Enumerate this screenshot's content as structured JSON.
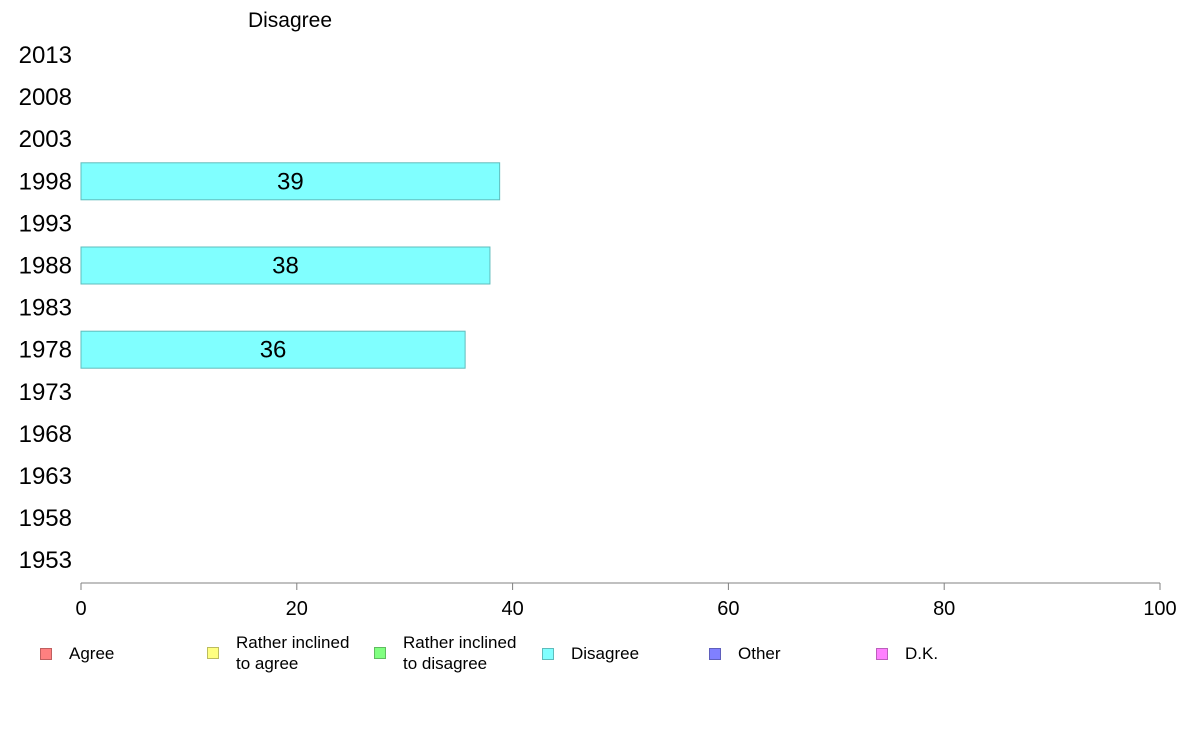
{
  "chart_data": {
    "type": "bar",
    "orientation": "horizontal",
    "title": "Disagree",
    "categories": [
      "2013",
      "2008",
      "2003",
      "1998",
      "1993",
      "1988",
      "1983",
      "1978",
      "1973",
      "1968",
      "1963",
      "1958",
      "1953"
    ],
    "values": [
      null,
      null,
      null,
      38.8,
      null,
      37.9,
      null,
      35.6,
      null,
      null,
      null,
      null,
      null
    ],
    "data_labels": [
      null,
      null,
      null,
      "39",
      null,
      "38",
      null,
      "36",
      null,
      null,
      null,
      null,
      null
    ],
    "xlim": [
      0,
      100
    ],
    "xticks": [
      0,
      20,
      40,
      60,
      80,
      100
    ],
    "xlabel": "",
    "ylabel": "",
    "bar_color": "#80ffff",
    "bar_edge_color": "#5fbcbc",
    "grid": false,
    "legend_position": "bottom",
    "legend": [
      {
        "label": "Agree",
        "color": "#ff8080",
        "border": "#c05f5f"
      },
      {
        "label": "Rather inclined\nto agree",
        "color": "#ffff80",
        "border": "#bcbc5f"
      },
      {
        "label": "Rather inclined\nto disagree",
        "color": "#80ff80",
        "border": "#5fbc5f"
      },
      {
        "label": "Disagree",
        "color": "#80ffff",
        "border": "#5fbcbc"
      },
      {
        "label": "Other",
        "color": "#8080ff",
        "border": "#5f5fbc"
      },
      {
        "label": "D.K.",
        "color": "#ff80ff",
        "border": "#bc5fbc"
      }
    ]
  }
}
